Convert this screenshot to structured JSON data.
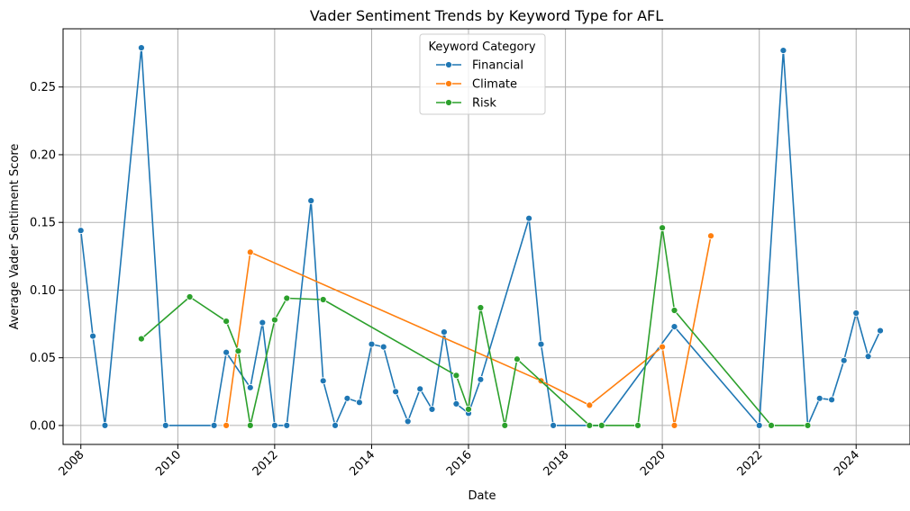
{
  "chart_data": {
    "type": "line",
    "title": "Vader Sentiment Trends by Keyword Type for AFL",
    "xlabel": "Date",
    "ylabel": "Average Vader Sentiment Score",
    "x_axis_type": "date",
    "xlim": [
      "2007-08-20",
      "2025-02-10"
    ],
    "ylim": [
      -0.014,
      0.293
    ],
    "x_ticks": [
      "2008",
      "2010",
      "2012",
      "2014",
      "2016",
      "2018",
      "2020",
      "2022",
      "2024"
    ],
    "x_tick_rotation": 45,
    "y_ticks": [
      "0.00",
      "0.05",
      "0.10",
      "0.15",
      "0.20",
      "0.25"
    ],
    "grid": true,
    "legend": {
      "title": "Keyword Category",
      "placement": "upper-center"
    },
    "series": [
      {
        "name": "Financial",
        "color": "#1f77b4",
        "points": [
          [
            "2008-01-01",
            0.144
          ],
          [
            "2008-04-01",
            0.066
          ],
          [
            "2008-07-01",
            0.0
          ],
          [
            "2009-04-01",
            0.279
          ],
          [
            "2009-10-01",
            0.0
          ],
          [
            "2010-10-01",
            0.0
          ],
          [
            "2011-01-01",
            0.054
          ],
          [
            "2011-07-01",
            0.028
          ],
          [
            "2011-10-01",
            0.076
          ],
          [
            "2012-01-01",
            0.0
          ],
          [
            "2012-04-01",
            0.0
          ],
          [
            "2012-10-01",
            0.166
          ],
          [
            "2013-01-01",
            0.033
          ],
          [
            "2013-04-01",
            0.0
          ],
          [
            "2013-07-01",
            0.02
          ],
          [
            "2013-10-01",
            0.017
          ],
          [
            "2014-01-01",
            0.06
          ],
          [
            "2014-04-01",
            0.058
          ],
          [
            "2014-07-01",
            0.025
          ],
          [
            "2014-10-01",
            0.003
          ],
          [
            "2015-01-01",
            0.027
          ],
          [
            "2015-04-01",
            0.012
          ],
          [
            "2015-07-01",
            0.069
          ],
          [
            "2015-10-01",
            0.016
          ],
          [
            "2016-01-01",
            0.009
          ],
          [
            "2016-04-01",
            0.034
          ],
          [
            "2017-04-01",
            0.153
          ],
          [
            "2017-07-01",
            0.06
          ],
          [
            "2017-10-01",
            0.0
          ],
          [
            "2018-07-01",
            0.0
          ],
          [
            "2018-10-01",
            0.0
          ],
          [
            "2020-04-01",
            0.073
          ],
          [
            "2022-01-01",
            0.0
          ],
          [
            "2022-07-01",
            0.277
          ],
          [
            "2023-01-01",
            0.0
          ],
          [
            "2023-04-01",
            0.02
          ],
          [
            "2023-07-01",
            0.019
          ],
          [
            "2023-10-01",
            0.048
          ],
          [
            "2024-01-01",
            0.083
          ],
          [
            "2024-04-01",
            0.051
          ],
          [
            "2024-07-01",
            0.07
          ]
        ]
      },
      {
        "name": "Climate",
        "color": "#ff7f0e",
        "points": [
          [
            "2011-01-01",
            0.0
          ],
          [
            "2011-07-01",
            0.128
          ],
          [
            "2017-07-01",
            0.033
          ],
          [
            "2018-07-01",
            0.015
          ],
          [
            "2020-01-01",
            0.058
          ],
          [
            "2020-04-01",
            0.0
          ],
          [
            "2021-01-01",
            0.14
          ]
        ]
      },
      {
        "name": "Risk",
        "color": "#2ca02c",
        "points": [
          [
            "2009-04-01",
            0.064
          ],
          [
            "2010-04-01",
            0.095
          ],
          [
            "2011-01-01",
            0.077
          ],
          [
            "2011-04-01",
            0.055
          ],
          [
            "2011-07-01",
            0.0
          ],
          [
            "2012-01-01",
            0.078
          ],
          [
            "2012-04-01",
            0.094
          ],
          [
            "2013-01-01",
            0.093
          ],
          [
            "2015-10-01",
            0.037
          ],
          [
            "2016-01-01",
            0.012
          ],
          [
            "2016-04-01",
            0.087
          ],
          [
            "2016-10-01",
            0.0
          ],
          [
            "2017-01-01",
            0.049
          ],
          [
            "2018-07-01",
            0.0
          ],
          [
            "2018-10-01",
            0.0
          ],
          [
            "2019-07-01",
            0.0
          ],
          [
            "2020-01-01",
            0.146
          ],
          [
            "2020-04-01",
            0.085
          ],
          [
            "2022-04-01",
            0.0
          ],
          [
            "2023-01-01",
            0.0
          ]
        ]
      }
    ]
  }
}
